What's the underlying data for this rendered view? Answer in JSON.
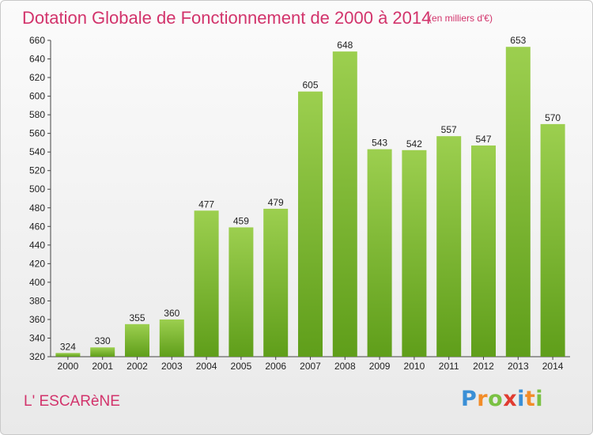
{
  "title": "Dotation Globale de Fonctionnement de 2000 à 2014",
  "subtitle": "(en milliers d'€)",
  "commune": "L' ESCARèNE",
  "logo": {
    "text": "Proxiti",
    "letters": [
      "P",
      "r",
      "o",
      "x",
      "i",
      "t",
      "i"
    ],
    "colors": [
      "#3a8fd6",
      "#f28c28",
      "#7ac143",
      "#e03c31",
      "#3a8fd6",
      "#f28c28",
      "#7ac143"
    ]
  },
  "chart_data": {
    "type": "bar",
    "categories": [
      "2000",
      "2001",
      "2002",
      "2003",
      "2004",
      "2005",
      "2006",
      "2007",
      "2008",
      "2009",
      "2010",
      "2011",
      "2012",
      "2013",
      "2014"
    ],
    "values": [
      324,
      330,
      355,
      360,
      477,
      459,
      479,
      605,
      648,
      543,
      542,
      557,
      547,
      653,
      570
    ],
    "ylim": [
      320,
      660
    ],
    "ytick_step": 20,
    "grid": false,
    "bar_color_top": "#9ccf4f",
    "bar_color_bottom": "#5f9e1a",
    "title": "Dotation Globale de Fonctionnement de 2000 à 2014",
    "xlabel": "",
    "ylabel": ""
  }
}
